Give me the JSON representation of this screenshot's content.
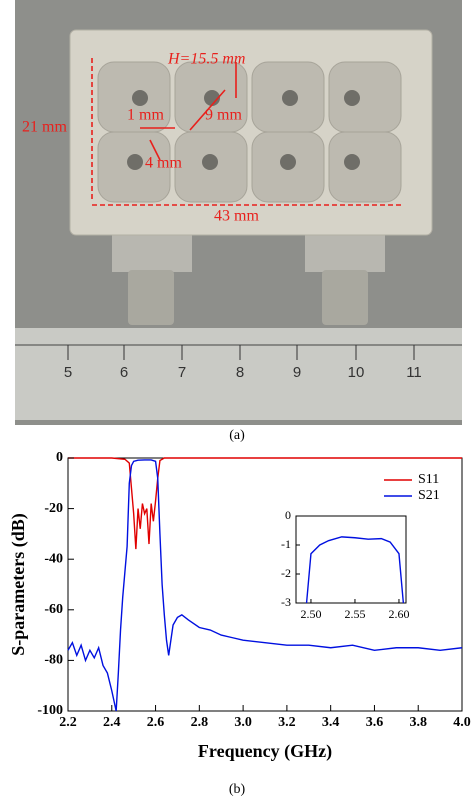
{
  "photo": {
    "annotations": {
      "height": "H=15.5 mm",
      "gap_9": "9 mm",
      "gap_1": "1 mm",
      "gap_4": "4 mm",
      "width_21": "21 mm",
      "length_43": "43 mm"
    },
    "ruler_numbers": [
      "5",
      "6",
      "7",
      "8",
      "9",
      "10",
      "11"
    ]
  },
  "captions": [
    "(a)",
    "(b)"
  ],
  "chart_data": [
    {
      "type": "line",
      "xlabel": "Frequency (GHz)",
      "ylabel": "S-parameters (dB)",
      "xlim": [
        2.2,
        4.0
      ],
      "ylim": [
        -100,
        0
      ],
      "xticks": [
        2.2,
        2.4,
        2.6,
        2.8,
        {
          "value": 3,
          "label": "3.0"
        },
        3.2,
        3.4,
        3.6,
        3.8,
        {
          "value": 4,
          "label": "4.0"
        }
      ],
      "yticks": [
        -100,
        -80,
        -60,
        -40,
        -20,
        0
      ],
      "legend": "upper right",
      "series": [
        {
          "name": "S11",
          "color": "#e00000",
          "x": [
            2.2,
            2.4,
            2.46,
            2.48,
            2.49,
            2.5,
            2.51,
            2.52,
            2.53,
            2.54,
            2.55,
            2.56,
            2.57,
            2.58,
            2.59,
            2.6,
            2.61,
            2.62,
            2.64,
            3.0,
            4.0
          ],
          "values": [
            0,
            0,
            -0.5,
            -2,
            -12,
            -22,
            -36,
            -20,
            -28,
            -18,
            -22,
            -20,
            -34,
            -18,
            -25,
            -17,
            -8,
            -1,
            0,
            0,
            0
          ]
        },
        {
          "name": "S21",
          "color": "#0010e0",
          "x": [
            2.2,
            2.22,
            2.24,
            2.26,
            2.28,
            2.3,
            2.32,
            2.34,
            2.36,
            2.38,
            2.4,
            2.41,
            2.42,
            2.43,
            2.44,
            2.45,
            2.46,
            2.47,
            2.48,
            2.49,
            2.5,
            2.52,
            2.55,
            2.58,
            2.6,
            2.61,
            2.62,
            2.63,
            2.64,
            2.65,
            2.66,
            2.67,
            2.68,
            2.7,
            2.72,
            2.75,
            2.8,
            2.85,
            2.9,
            2.95,
            3.0,
            3.1,
            3.2,
            3.3,
            3.4,
            3.5,
            3.6,
            3.7,
            3.8,
            3.9,
            4.0
          ],
          "values": [
            -76,
            -73,
            -78,
            -74,
            -80,
            -76,
            -79,
            -75,
            -82,
            -85,
            -92,
            -96,
            -100,
            -85,
            -68,
            -55,
            -45,
            -35,
            -10,
            -3,
            -1.3,
            -0.85,
            -0.75,
            -0.78,
            -1.3,
            -8,
            -30,
            -50,
            -62,
            -72,
            -78,
            -72,
            -66,
            -63,
            -62,
            -64,
            -67,
            -68,
            -70,
            -71,
            -72,
            -73,
            -74,
            -74,
            -75,
            -74,
            -76,
            -75,
            -75,
            -76,
            -75
          ]
        }
      ]
    },
    {
      "type": "line",
      "xlim": [
        2.483,
        2.608
      ],
      "ylim": [
        -3,
        0
      ],
      "xticks": [
        {
          "value": 2.5,
          "label": "2.50"
        },
        2.55,
        {
          "value": 2.6,
          "label": "2.60"
        }
      ],
      "yticks": [
        -3,
        -2,
        -1,
        0
      ],
      "series": [
        {
          "color": "#0010e0",
          "x": [
            2.495,
            2.5,
            2.51,
            2.52,
            2.535,
            2.55,
            2.565,
            2.58,
            2.59,
            2.6,
            2.605
          ],
          "values": [
            -3,
            -1.3,
            -1.0,
            -0.85,
            -0.72,
            -0.75,
            -0.8,
            -0.78,
            -0.9,
            -1.3,
            -3
          ]
        }
      ]
    }
  ]
}
